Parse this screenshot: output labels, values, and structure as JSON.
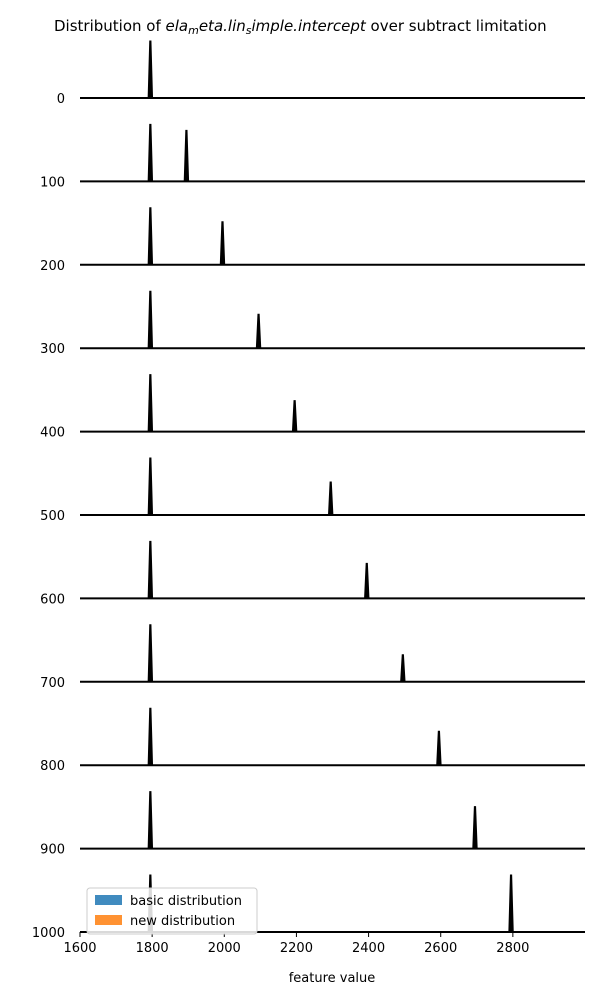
{
  "chart_data": {
    "type": "area",
    "title_prefix": "Distribution of ",
    "title_math": "ela_meta.lin_simple.intercept",
    "title_suffix": " over subtract limitation",
    "xlabel": "feature value",
    "xlim": [
      1600,
      3000
    ],
    "x_ticks": [
      1600,
      1800,
      2000,
      2200,
      2400,
      2600,
      2800
    ],
    "ylim": [
      0,
      1000
    ],
    "rows": [
      {
        "label": "0",
        "basic_peak": 1795,
        "new_peak": 1795
      },
      {
        "label": "100",
        "basic_peak": 1795,
        "new_peak": 1895
      },
      {
        "label": "200",
        "basic_peak": 1795,
        "new_peak": 1995
      },
      {
        "label": "300",
        "basic_peak": 1795,
        "new_peak": 2095
      },
      {
        "label": "400",
        "basic_peak": 1795,
        "new_peak": 2195
      },
      {
        "label": "500",
        "basic_peak": 1795,
        "new_peak": 2295
      },
      {
        "label": "600",
        "basic_peak": 1795,
        "new_peak": 2395
      },
      {
        "label": "700",
        "basic_peak": 1795,
        "new_peak": 2495
      },
      {
        "label": "800",
        "basic_peak": 1795,
        "new_peak": 2595
      },
      {
        "label": "900",
        "basic_peak": 1795,
        "new_peak": 2695
      },
      {
        "label": "1000",
        "basic_peak": 1795,
        "new_peak": 2795
      }
    ],
    "series": [
      {
        "name": "basic distribution",
        "color": "#1f77b4"
      },
      {
        "name": "new distribution",
        "color": "#ff7f0e"
      }
    ],
    "legend": "bottom-left",
    "grid": false
  }
}
